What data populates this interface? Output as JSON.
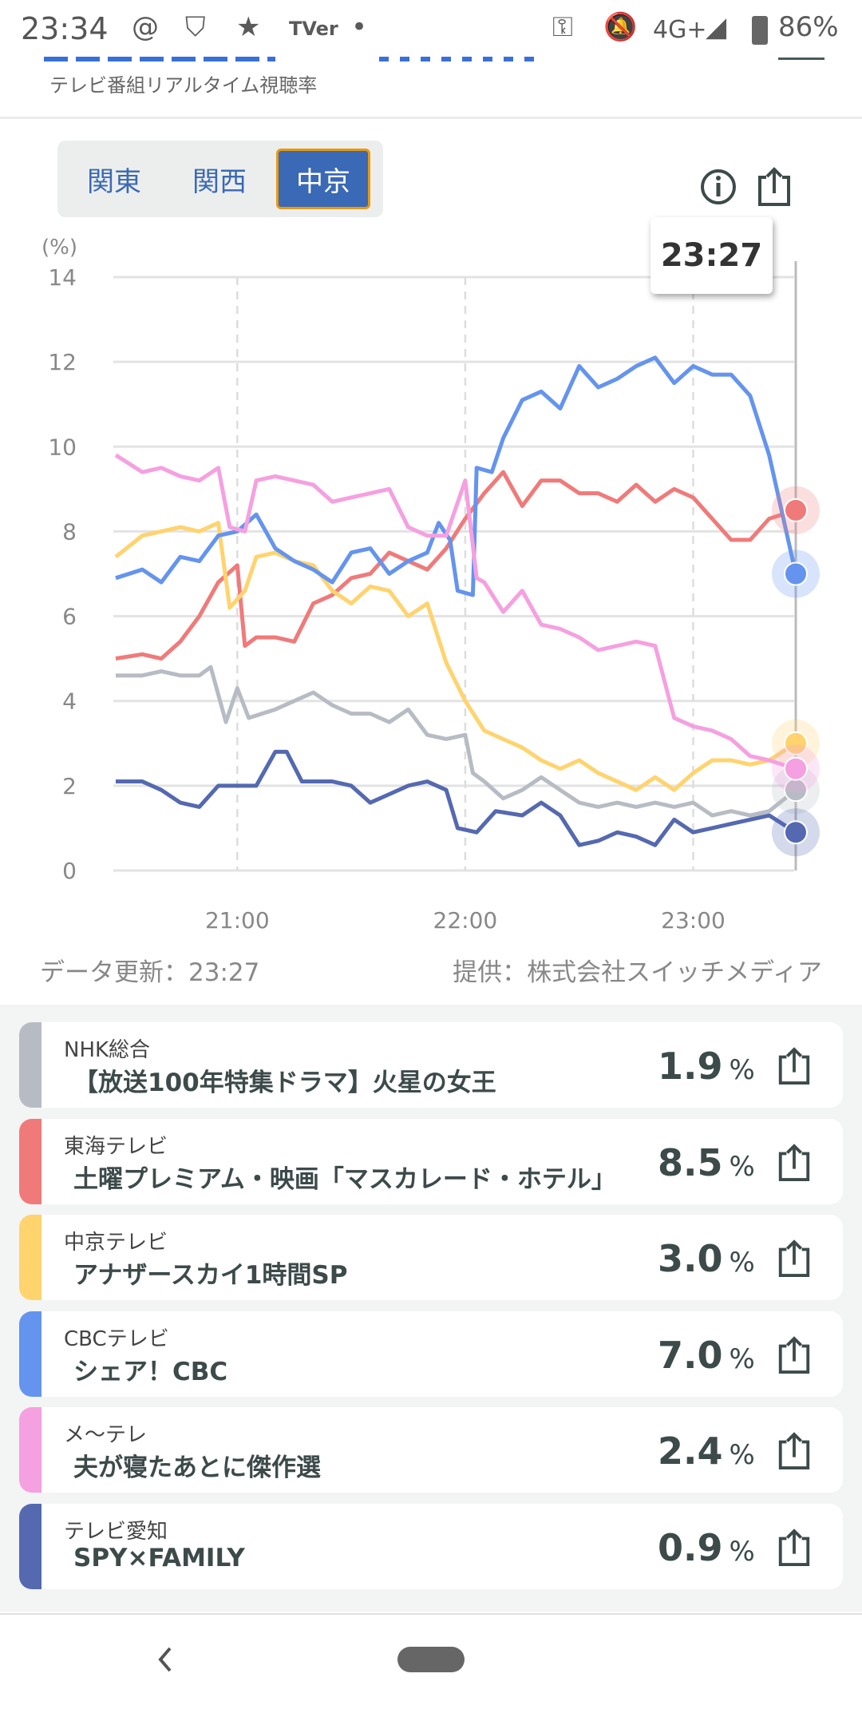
{
  "status_bar": {
    "time": "23:34",
    "network": "4G+",
    "battery": "86%",
    "icons": [
      "threads-icon",
      "shield-check-icon",
      "star-icon",
      "tver-icon",
      "dot-icon",
      "key-icon",
      "bell-off-icon",
      "signal-icon",
      "battery-icon"
    ],
    "tver_label": "TVer"
  },
  "header": {
    "subtitle": "テレビ番組リアルタイム視聴率"
  },
  "region_tabs": [
    {
      "label": "関東",
      "active": false
    },
    {
      "label": "関西",
      "active": false
    },
    {
      "label": "中京",
      "active": true
    }
  ],
  "tooltip": {
    "time": "23:27"
  },
  "footer": {
    "updated": "データ更新：23:27",
    "provider": "提供：株式会社スイッチメディア"
  },
  "chart_data": {
    "type": "line",
    "title": "",
    "ylabel": "(%)",
    "ylim": [
      0,
      14
    ],
    "yticks": [
      "0",
      "2",
      "4",
      "6",
      "8",
      "10",
      "12",
      "14"
    ],
    "xticks": [
      "21:00",
      "22:00",
      "23:00"
    ],
    "xrange": [
      "20:28",
      "23:27"
    ],
    "grid": true,
    "cursor": "23:27",
    "series": [
      {
        "name": "NHK総合",
        "color": "#b7bcc4",
        "points": [
          [
            "20:28",
            4.6
          ],
          [
            "20:35",
            4.6
          ],
          [
            "20:40",
            4.7
          ],
          [
            "20:45",
            4.6
          ],
          [
            "20:50",
            4.6
          ],
          [
            "20:53",
            4.8
          ],
          [
            "20:57",
            3.5
          ],
          [
            "21:00",
            4.3
          ],
          [
            "21:03",
            3.6
          ],
          [
            "21:10",
            3.8
          ],
          [
            "21:15",
            4.0
          ],
          [
            "21:20",
            4.2
          ],
          [
            "21:25",
            3.9
          ],
          [
            "21:30",
            3.7
          ],
          [
            "21:35",
            3.7
          ],
          [
            "21:40",
            3.5
          ],
          [
            "21:45",
            3.8
          ],
          [
            "21:50",
            3.2
          ],
          [
            "21:55",
            3.1
          ],
          [
            "22:00",
            3.2
          ],
          [
            "22:02",
            2.3
          ],
          [
            "22:05",
            2.1
          ],
          [
            "22:10",
            1.7
          ],
          [
            "22:15",
            1.9
          ],
          [
            "22:20",
            2.2
          ],
          [
            "22:25",
            1.9
          ],
          [
            "22:30",
            1.6
          ],
          [
            "22:35",
            1.5
          ],
          [
            "22:40",
            1.6
          ],
          [
            "22:45",
            1.5
          ],
          [
            "22:50",
            1.6
          ],
          [
            "22:55",
            1.5
          ],
          [
            "23:00",
            1.6
          ],
          [
            "23:05",
            1.3
          ],
          [
            "23:10",
            1.4
          ],
          [
            "23:15",
            1.3
          ],
          [
            "23:20",
            1.4
          ],
          [
            "23:27",
            1.9
          ]
        ]
      },
      {
        "name": "東海テレビ",
        "color": "#f07a7a",
        "points": [
          [
            "20:28",
            5.0
          ],
          [
            "20:35",
            5.1
          ],
          [
            "20:40",
            5.0
          ],
          [
            "20:45",
            5.4
          ],
          [
            "20:50",
            6.0
          ],
          [
            "20:55",
            6.8
          ],
          [
            "21:00",
            7.2
          ],
          [
            "21:02",
            5.3
          ],
          [
            "21:05",
            5.5
          ],
          [
            "21:10",
            5.5
          ],
          [
            "21:15",
            5.4
          ],
          [
            "21:20",
            6.3
          ],
          [
            "21:25",
            6.5
          ],
          [
            "21:30",
            6.9
          ],
          [
            "21:35",
            7.0
          ],
          [
            "21:40",
            7.5
          ],
          [
            "21:45",
            7.3
          ],
          [
            "21:50",
            7.1
          ],
          [
            "21:55",
            7.6
          ],
          [
            "22:00",
            8.3
          ],
          [
            "22:05",
            8.9
          ],
          [
            "22:10",
            9.4
          ],
          [
            "22:15",
            8.6
          ],
          [
            "22:20",
            9.2
          ],
          [
            "22:25",
            9.2
          ],
          [
            "22:30",
            8.9
          ],
          [
            "22:35",
            8.9
          ],
          [
            "22:40",
            8.7
          ],
          [
            "22:45",
            9.1
          ],
          [
            "22:50",
            8.7
          ],
          [
            "22:55",
            9.0
          ],
          [
            "23:00",
            8.8
          ],
          [
            "23:05",
            8.3
          ],
          [
            "23:10",
            7.8
          ],
          [
            "23:15",
            7.8
          ],
          [
            "23:20",
            8.3
          ],
          [
            "23:27",
            8.5
          ]
        ]
      },
      {
        "name": "中京テレビ",
        "color": "#ffd36e",
        "points": [
          [
            "20:28",
            7.4
          ],
          [
            "20:35",
            7.9
          ],
          [
            "20:40",
            8.0
          ],
          [
            "20:45",
            8.1
          ],
          [
            "20:50",
            8.0
          ],
          [
            "20:55",
            8.2
          ],
          [
            "20:58",
            6.2
          ],
          [
            "21:02",
            6.6
          ],
          [
            "21:05",
            7.4
          ],
          [
            "21:10",
            7.5
          ],
          [
            "21:15",
            7.3
          ],
          [
            "21:20",
            7.2
          ],
          [
            "21:25",
            6.6
          ],
          [
            "21:30",
            6.3
          ],
          [
            "21:35",
            6.7
          ],
          [
            "21:40",
            6.6
          ],
          [
            "21:45",
            6.0
          ],
          [
            "21:50",
            6.3
          ],
          [
            "21:55",
            4.9
          ],
          [
            "22:00",
            4.0
          ],
          [
            "22:05",
            3.3
          ],
          [
            "22:10",
            3.1
          ],
          [
            "22:15",
            2.9
          ],
          [
            "22:20",
            2.6
          ],
          [
            "22:25",
            2.4
          ],
          [
            "22:30",
            2.6
          ],
          [
            "22:35",
            2.3
          ],
          [
            "22:40",
            2.1
          ],
          [
            "22:45",
            1.9
          ],
          [
            "22:50",
            2.2
          ],
          [
            "22:55",
            1.9
          ],
          [
            "23:00",
            2.3
          ],
          [
            "23:05",
            2.6
          ],
          [
            "23:10",
            2.6
          ],
          [
            "23:15",
            2.5
          ],
          [
            "23:20",
            2.6
          ],
          [
            "23:27",
            3.0
          ]
        ]
      },
      {
        "name": "CBCテレビ",
        "color": "#6494ee",
        "points": [
          [
            "20:28",
            6.9
          ],
          [
            "20:35",
            7.1
          ],
          [
            "20:40",
            6.8
          ],
          [
            "20:45",
            7.4
          ],
          [
            "20:50",
            7.3
          ],
          [
            "20:55",
            7.9
          ],
          [
            "21:00",
            8.0
          ],
          [
            "21:05",
            8.4
          ],
          [
            "21:10",
            7.6
          ],
          [
            "21:15",
            7.3
          ],
          [
            "21:20",
            7.1
          ],
          [
            "21:25",
            6.8
          ],
          [
            "21:30",
            7.5
          ],
          [
            "21:35",
            7.6
          ],
          [
            "21:40",
            7.0
          ],
          [
            "21:45",
            7.3
          ],
          [
            "21:50",
            7.5
          ],
          [
            "21:53",
            8.2
          ],
          [
            "21:56",
            7.8
          ],
          [
            "21:58",
            6.6
          ],
          [
            "22:02",
            6.5
          ],
          [
            "22:03",
            9.5
          ],
          [
            "22:07",
            9.4
          ],
          [
            "22:10",
            10.2
          ],
          [
            "22:15",
            11.1
          ],
          [
            "22:20",
            11.3
          ],
          [
            "22:25",
            10.9
          ],
          [
            "22:30",
            11.9
          ],
          [
            "22:35",
            11.4
          ],
          [
            "22:40",
            11.6
          ],
          [
            "22:45",
            11.9
          ],
          [
            "22:50",
            12.1
          ],
          [
            "22:55",
            11.5
          ],
          [
            "23:00",
            11.9
          ],
          [
            "23:05",
            11.7
          ],
          [
            "23:10",
            11.7
          ],
          [
            "23:15",
            11.2
          ],
          [
            "23:20",
            9.8
          ],
          [
            "23:27",
            7.0
          ]
        ]
      },
      {
        "name": "メ〜テレ",
        "color": "#f5a0e0",
        "points": [
          [
            "20:28",
            9.8
          ],
          [
            "20:35",
            9.4
          ],
          [
            "20:40",
            9.5
          ],
          [
            "20:45",
            9.3
          ],
          [
            "20:50",
            9.2
          ],
          [
            "20:55",
            9.5
          ],
          [
            "20:58",
            8.1
          ],
          [
            "21:02",
            8.0
          ],
          [
            "21:05",
            9.2
          ],
          [
            "21:10",
            9.3
          ],
          [
            "21:15",
            9.2
          ],
          [
            "21:20",
            9.1
          ],
          [
            "21:25",
            8.7
          ],
          [
            "21:30",
            8.8
          ],
          [
            "21:35",
            8.9
          ],
          [
            "21:40",
            9.0
          ],
          [
            "21:45",
            8.1
          ],
          [
            "21:50",
            7.9
          ],
          [
            "21:55",
            7.9
          ],
          [
            "22:00",
            9.2
          ],
          [
            "22:03",
            6.9
          ],
          [
            "22:05",
            6.8
          ],
          [
            "22:10",
            6.1
          ],
          [
            "22:15",
            6.6
          ],
          [
            "22:20",
            5.8
          ],
          [
            "22:25",
            5.7
          ],
          [
            "22:30",
            5.5
          ],
          [
            "22:35",
            5.2
          ],
          [
            "22:40",
            5.3
          ],
          [
            "22:45",
            5.4
          ],
          [
            "22:50",
            5.3
          ],
          [
            "22:55",
            3.6
          ],
          [
            "23:00",
            3.4
          ],
          [
            "23:05",
            3.3
          ],
          [
            "23:10",
            3.1
          ],
          [
            "23:15",
            2.7
          ],
          [
            "23:20",
            2.6
          ],
          [
            "23:27",
            2.4
          ]
        ]
      },
      {
        "name": "テレビ愛知",
        "color": "#5469b0",
        "points": [
          [
            "20:28",
            2.1
          ],
          [
            "20:35",
            2.1
          ],
          [
            "20:40",
            1.9
          ],
          [
            "20:45",
            1.6
          ],
          [
            "20:50",
            1.5
          ],
          [
            "20:55",
            2.0
          ],
          [
            "21:00",
            2.0
          ],
          [
            "21:05",
            2.0
          ],
          [
            "21:10",
            2.8
          ],
          [
            "21:13",
            2.8
          ],
          [
            "21:17",
            2.1
          ],
          [
            "21:25",
            2.1
          ],
          [
            "21:30",
            2.0
          ],
          [
            "21:35",
            1.6
          ],
          [
            "21:40",
            1.8
          ],
          [
            "21:45",
            2.0
          ],
          [
            "21:50",
            2.1
          ],
          [
            "21:55",
            1.9
          ],
          [
            "21:58",
            1.0
          ],
          [
            "22:03",
            0.9
          ],
          [
            "22:08",
            1.4
          ],
          [
            "22:15",
            1.3
          ],
          [
            "22:20",
            1.6
          ],
          [
            "22:25",
            1.3
          ],
          [
            "22:30",
            0.6
          ],
          [
            "22:35",
            0.7
          ],
          [
            "22:40",
            0.9
          ],
          [
            "22:45",
            0.8
          ],
          [
            "22:50",
            0.6
          ],
          [
            "22:55",
            1.2
          ],
          [
            "23:00",
            0.9
          ],
          [
            "23:05",
            1.0
          ],
          [
            "23:10",
            1.1
          ],
          [
            "23:15",
            1.2
          ],
          [
            "23:20",
            1.3
          ],
          [
            "23:27",
            0.9
          ]
        ]
      }
    ]
  },
  "channels": [
    {
      "channel": "NHK総合",
      "program": "【放送100年特集ドラマ】火星の女王",
      "rating": "1.9",
      "unit": "%",
      "color": "#b7bcc4"
    },
    {
      "channel": "東海テレビ",
      "program": "土曜プレミアム・映画「マスカレード・ホテル」",
      "rating": "8.5",
      "unit": "%",
      "color": "#f07a7a"
    },
    {
      "channel": "中京テレビ",
      "program": "アナザースカイ1時間SP",
      "rating": "3.0",
      "unit": "%",
      "color": "#ffd36e"
    },
    {
      "channel": "CBCテレビ",
      "program": "シェア！CBC",
      "rating": "7.0",
      "unit": "%",
      "color": "#6494ee"
    },
    {
      "channel": "メ〜テレ",
      "program": "夫が寝たあとに傑作選",
      "rating": "2.4",
      "unit": "%",
      "color": "#f5a0e0"
    },
    {
      "channel": "テレビ愛知",
      "program": "SPY×FAMILY",
      "rating": "0.9",
      "unit": "%",
      "color": "#5469b0"
    }
  ]
}
